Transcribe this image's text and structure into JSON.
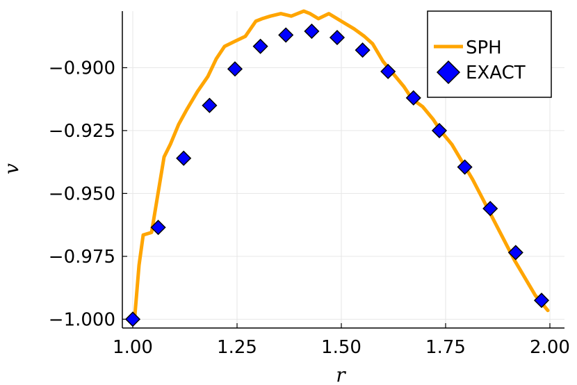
{
  "chart_data": {
    "type": "line",
    "title": "",
    "xlabel": "r",
    "ylabel": "v",
    "xlim": [
      0.975,
      2.035
    ],
    "ylim": [
      -1.0035,
      -0.8775
    ],
    "grid": true,
    "legend_position": "top-right",
    "x_ticks": [
      1.0,
      1.25,
      1.5,
      1.75,
      2.0
    ],
    "x_tick_labels": [
      "1.00",
      "1.25",
      "1.50",
      "1.75",
      "2.00"
    ],
    "y_ticks": [
      -1.0,
      -0.975,
      -0.95,
      -0.925,
      -0.9
    ],
    "y_tick_labels": [
      "−1.000",
      "−0.975",
      "−0.950",
      "−0.925",
      "−0.900"
    ],
    "series": [
      {
        "name": "SPH",
        "style": "line",
        "color": "#FFA500",
        "x": [
          1.005,
          1.015,
          1.025,
          1.045,
          1.055,
          1.075,
          1.09,
          1.11,
          1.13,
          1.155,
          1.18,
          1.2,
          1.22,
          1.245,
          1.27,
          1.295,
          1.31,
          1.33,
          1.355,
          1.38,
          1.395,
          1.41,
          1.425,
          1.445,
          1.47,
          1.49,
          1.51,
          1.53,
          1.555,
          1.575,
          1.6,
          1.625,
          1.65,
          1.67,
          1.695,
          1.72,
          1.74,
          1.765,
          1.79,
          1.815,
          1.84,
          1.865,
          1.89,
          1.915,
          1.94,
          1.965,
          1.985,
          1.995
        ],
        "values": [
          -0.9985,
          -0.9785,
          -0.9665,
          -0.9655,
          -0.9555,
          -0.9355,
          -0.9305,
          -0.9225,
          -0.9165,
          -0.9095,
          -0.9035,
          -0.8965,
          -0.8915,
          -0.8895,
          -0.8875,
          -0.8815,
          -0.8805,
          -0.8795,
          -0.8785,
          -0.8795,
          -0.8785,
          -0.8775,
          -0.8785,
          -0.8805,
          -0.8785,
          -0.8805,
          -0.8825,
          -0.8845,
          -0.8875,
          -0.8905,
          -0.8975,
          -0.9025,
          -0.9075,
          -0.9125,
          -0.9155,
          -0.9205,
          -0.9255,
          -0.9305,
          -0.9375,
          -0.9445,
          -0.9525,
          -0.9605,
          -0.9685,
          -0.9765,
          -0.9835,
          -0.9905,
          -0.9945,
          -0.9965
        ]
      },
      {
        "name": "EXACT",
        "style": "markers",
        "marker": "diamond",
        "color": "#0000FF",
        "x": [
          1.0,
          1.061,
          1.122,
          1.184,
          1.245,
          1.306,
          1.367,
          1.429,
          1.49,
          1.551,
          1.612,
          1.673,
          1.735,
          1.796,
          1.857,
          1.918,
          1.98
        ],
        "values": [
          -1.0,
          -0.9635,
          -0.936,
          -0.915,
          -0.9005,
          -0.8915,
          -0.887,
          -0.8855,
          -0.888,
          -0.893,
          -0.9015,
          -0.912,
          -0.925,
          -0.9395,
          -0.956,
          -0.9735,
          -0.9925
        ]
      }
    ]
  }
}
